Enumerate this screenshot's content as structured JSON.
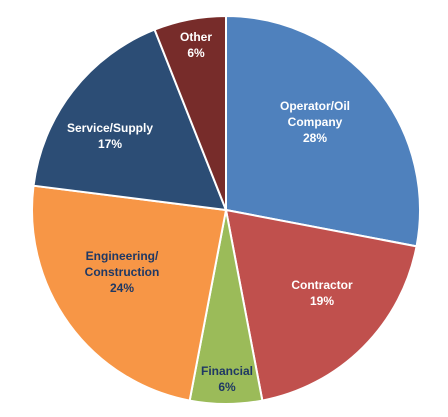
{
  "chart_data": {
    "type": "pie",
    "start_angle_deg": 0,
    "direction": "clockwise",
    "slices": [
      {
        "name_lines": [
          "Operator/Oil",
          "Company"
        ],
        "value": 28,
        "pct_text": "28%",
        "color": "#4F81BD",
        "label_color": "#FFFFFF"
      },
      {
        "name_lines": [
          "Contractor"
        ],
        "value": 19,
        "pct_text": "19%",
        "color": "#C0504D",
        "label_color": "#FFFFFF"
      },
      {
        "name_lines": [
          "Financial"
        ],
        "value": 6,
        "pct_text": "6%",
        "color": "#9BBB59",
        "label_color": "#1F3864"
      },
      {
        "name_lines": [
          "Engineering/",
          "Construction"
        ],
        "value": 24,
        "pct_text": "24%",
        "color": "#F79646",
        "label_color": "#1F3864"
      },
      {
        "name_lines": [
          "Service/Supply"
        ],
        "value": 17,
        "pct_text": "17%",
        "color": "#2C4D75",
        "label_color": "#FFFFFF"
      },
      {
        "name_lines": [
          "Other"
        ],
        "value": 6,
        "pct_text": "6%",
        "color": "#772C2A",
        "label_color": "#FFFFFF"
      }
    ]
  }
}
